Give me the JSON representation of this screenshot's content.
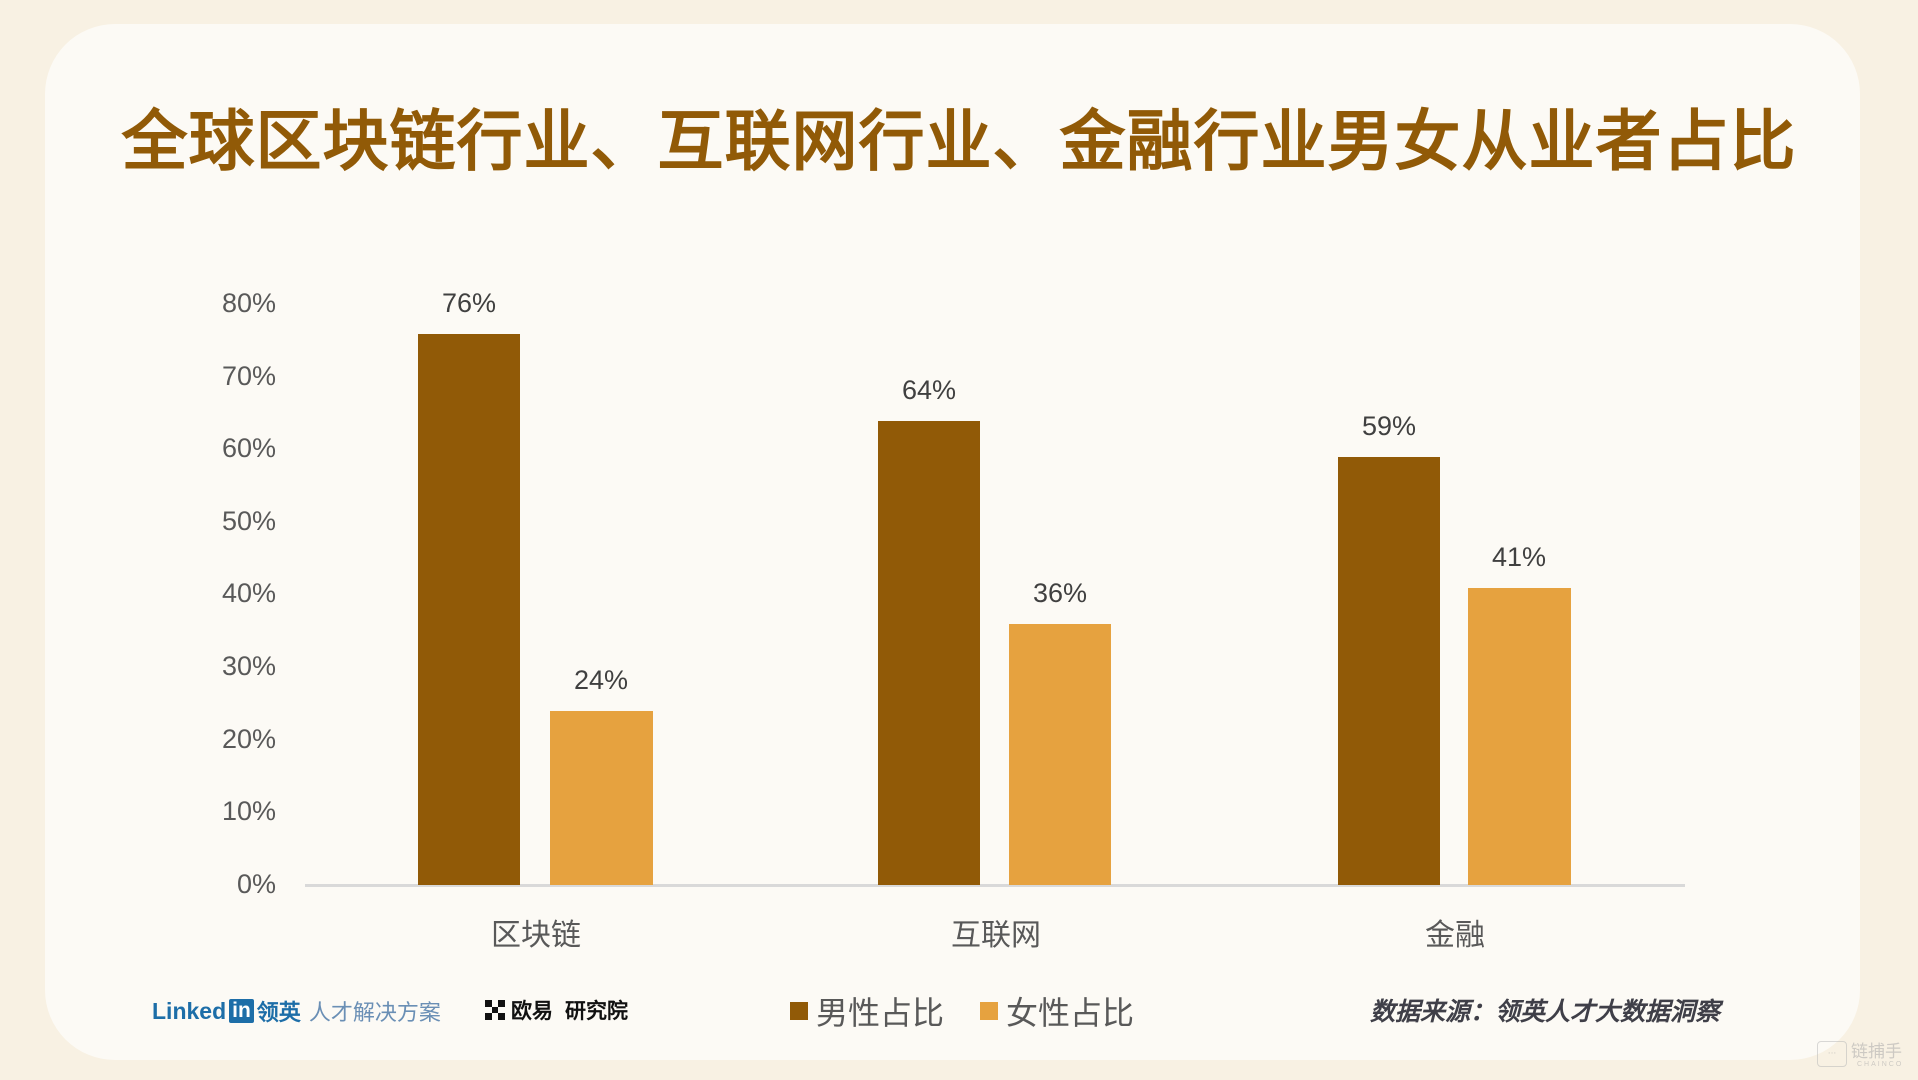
{
  "title": "全球区块链行业、互联网行业、金融行业男女从业者占比",
  "colors": {
    "male": "#915a07",
    "female": "#e6a23f",
    "title": "#915a07",
    "axis": "#d9d9d9"
  },
  "chart_data": {
    "type": "bar",
    "title": "全球区块链行业、互联网行业、金融行业男女从业者占比",
    "categories": [
      "区块链",
      "互联网",
      "金融"
    ],
    "series": [
      {
        "name": "男性占比",
        "values": [
          76,
          64,
          59
        ],
        "labels": [
          "76%",
          "64%",
          "59%"
        ],
        "color": "#915a07"
      },
      {
        "name": "女性占比",
        "values": [
          24,
          36,
          41
        ],
        "labels": [
          "24%",
          "36%",
          "41%"
        ],
        "color": "#e6a23f"
      }
    ],
    "xlabel": "",
    "ylabel": "",
    "ylim": [
      0,
      80
    ],
    "yticks": [
      "0%",
      "10%",
      "20%",
      "30%",
      "40%",
      "50%",
      "60%",
      "70%",
      "80%"
    ],
    "grid": false,
    "legend_position": "bottom"
  },
  "footer": {
    "linkedin_word": "Linked",
    "linkedin_in": "in",
    "linkedin_cn": "领英",
    "linkedin_sub": "人才解决方案",
    "okx_name": "欧易",
    "okx_sub": "研究院",
    "source": "数据来源：领英人才大数据洞察"
  },
  "watermark": {
    "text": "链捕手",
    "sub": "CHAINCO",
    "icon": "chat-bubble-icon"
  }
}
